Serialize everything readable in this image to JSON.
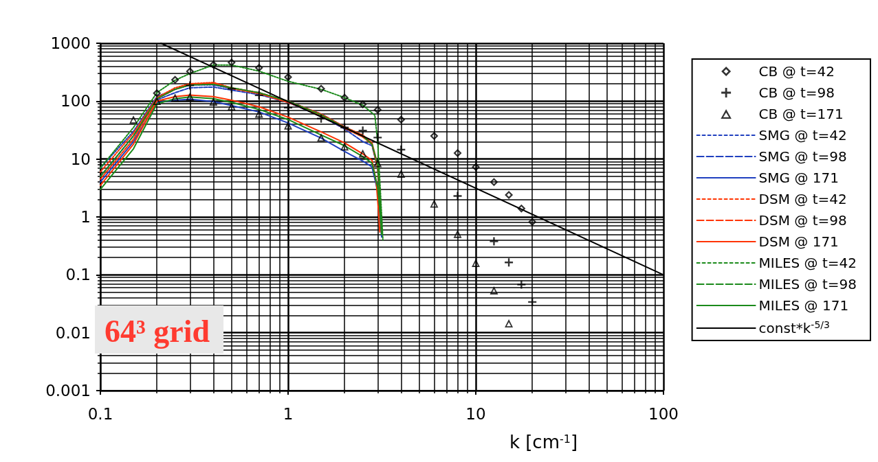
{
  "chart_data": {
    "type": "line",
    "xlabel": "k [cm$^{-1}$]",
    "annotations": [
      "64³ grid"
    ],
    "log": "xy",
    "grid": true,
    "legend": "right",
    "xlim": [
      0.1,
      100
    ],
    "xticks": [
      0.1,
      1,
      10,
      100
    ],
    "ylim": [
      0.001,
      1000
    ],
    "yticks": [
      0.001,
      0.01,
      0.1,
      1,
      10,
      100,
      1000
    ],
    "series": [
      {
        "name": "CB @ t=42",
        "type": "scatter",
        "marker": "diamond",
        "color": "#000000",
        "x": [
          0.2,
          0.25,
          0.3,
          0.4,
          0.5,
          0.7,
          1,
          1.5,
          2,
          2.5,
          3,
          4,
          6,
          8,
          10,
          12.5,
          15,
          17.5,
          20
        ],
        "values": [
          137,
          233,
          327,
          425,
          464,
          378,
          261,
          164,
          115,
          88,
          71,
          48,
          25,
          12.7,
          7.3,
          4,
          2.4,
          1.4,
          0.82
        ]
      },
      {
        "name": "CB @ t=98",
        "type": "scatter",
        "marker": "cross",
        "color": "#000000",
        "x": [
          0.3,
          0.5,
          0.7,
          1,
          1.5,
          2,
          2.5,
          3,
          4,
          8,
          12.5,
          15,
          17.5,
          20
        ],
        "values": [
          187,
          164,
          126,
          77,
          50,
          35,
          31,
          23.5,
          14.5,
          2.3,
          0.38,
          0.164,
          0.068,
          0.034
        ]
      },
      {
        "name": "CB @ t=171",
        "type": "scatter",
        "marker": "triangle",
        "color": "#000000",
        "x": [
          0.15,
          0.2,
          0.25,
          0.3,
          0.4,
          0.5,
          0.7,
          1,
          1.5,
          2,
          2.5,
          3,
          4,
          6,
          8,
          10,
          12.5,
          15
        ],
        "values": [
          48,
          101,
          115,
          120,
          98,
          81,
          61,
          38,
          23.5,
          16.5,
          12.5,
          8.5,
          5.6,
          1.7,
          0.51,
          0.161,
          0.054,
          0.0145
        ]
      },
      {
        "name": "SMG @ t=42",
        "line_style": "dotted",
        "color": "#1f3fbf",
        "x": [
          0.1,
          0.15,
          0.2,
          0.25,
          0.3,
          0.4,
          0.5,
          0.7,
          1,
          1.5,
          2,
          2.5,
          2.8,
          3,
          3.1,
          3.15
        ],
        "values": [
          7,
          30,
          120,
          160,
          190,
          190,
          165,
          140,
          100,
          60,
          36,
          25,
          18,
          8,
          1.5,
          0.55
        ]
      },
      {
        "name": "SMG @ t=98",
        "line_style": "dashed",
        "color": "#1f3fbf",
        "x": [
          0.1,
          0.15,
          0.2,
          0.25,
          0.3,
          0.4,
          0.5,
          0.7,
          1,
          1.5,
          2,
          2.5,
          2.8,
          3,
          3.1,
          3.15
        ],
        "values": [
          5,
          25,
          105,
          140,
          170,
          175,
          155,
          130,
          95,
          55,
          33,
          20,
          17,
          7,
          1.3,
          0.55
        ]
      },
      {
        "name": "SMG @ 171",
        "line_style": "solid",
        "color": "#1f3fbf",
        "x": [
          0.1,
          0.15,
          0.2,
          0.25,
          0.3,
          0.4,
          0.5,
          0.7,
          1,
          1.5,
          2,
          2.5,
          2.8,
          3,
          3.1,
          3.15
        ],
        "values": [
          4,
          20,
          95,
          104,
          108,
          98,
          84,
          65,
          42,
          23,
          13.5,
          9.2,
          7.3,
          2.8,
          0.9,
          0.45
        ]
      },
      {
        "name": "DSM @ t=42",
        "line_style": "dotted",
        "color": "#ff3300",
        "x": [
          0.1,
          0.15,
          0.2,
          0.25,
          0.3,
          0.4,
          0.5,
          0.7,
          1,
          1.5,
          2,
          2.5,
          2.8,
          3,
          3.1,
          3.15
        ],
        "values": [
          6,
          28,
          115,
          170,
          200,
          210,
          170,
          140,
          100,
          60,
          36,
          26,
          19,
          8,
          1.5,
          0.6
        ]
      },
      {
        "name": "DSM @ t=98",
        "line_style": "dashed",
        "color": "#ff3300",
        "x": [
          0.1,
          0.15,
          0.2,
          0.25,
          0.3,
          0.4,
          0.5,
          0.7,
          1,
          1.5,
          2,
          2.5,
          2.8,
          3,
          3.1,
          3.15
        ],
        "values": [
          4.5,
          22,
          110,
          160,
          195,
          205,
          165,
          135,
          95,
          57,
          34,
          24,
          18,
          7,
          1.4,
          0.55
        ]
      },
      {
        "name": "DSM @ 171",
        "line_style": "solid",
        "color": "#ff3300",
        "x": [
          0.1,
          0.15,
          0.2,
          0.25,
          0.3,
          0.4,
          0.5,
          0.7,
          1,
          1.5,
          2,
          2.5,
          2.8,
          2.95,
          3.03,
          3.08
        ],
        "values": [
          3.5,
          18,
          100,
          120,
          127,
          120,
          104,
          80,
          53,
          29.5,
          19,
          12.3,
          9.5,
          4,
          1.3,
          0.55
        ]
      },
      {
        "name": "MILES @ t=42",
        "line_style": "dotted",
        "color": "#1a8a1a",
        "x": [
          0.1,
          0.15,
          0.2,
          0.25,
          0.3,
          0.4,
          0.5,
          0.7,
          1,
          1.5,
          2,
          2.5,
          2.9,
          3,
          3.1,
          3.2
        ],
        "values": [
          7,
          35,
          140,
          230,
          300,
          420,
          420,
          330,
          220,
          160,
          115,
          85,
          57,
          20,
          3,
          0.4
        ]
      },
      {
        "name": "MILES @ t=98",
        "line_style": "dashed",
        "color": "#1a8a1a",
        "x": [
          0.1,
          0.15,
          0.2,
          0.25,
          0.3,
          0.4,
          0.5,
          0.7,
          1,
          1.5,
          2,
          2.5,
          2.8,
          3,
          3.1,
          3.15
        ],
        "values": [
          5,
          25,
          110,
          160,
          190,
          195,
          170,
          140,
          100,
          58,
          35,
          25,
          18,
          8,
          1.5,
          0.6
        ]
      },
      {
        "name": "MILES @ 171",
        "line_style": "solid",
        "color": "#1a8a1a",
        "x": [
          0.1,
          0.15,
          0.2,
          0.25,
          0.3,
          0.4,
          0.5,
          0.7,
          1,
          1.5,
          2,
          2.5,
          2.8,
          3,
          3.1,
          3.15
        ],
        "values": [
          3,
          15,
          90,
          110,
          118,
          110,
          95,
          72,
          48,
          26,
          17,
          11,
          8.5,
          3.3,
          1.1,
          0.5
        ]
      },
      {
        "name": "const*k$^{-5/3}$",
        "line_style": "solid",
        "color": "#000000",
        "x": [
          0.21,
          1,
          100
        ],
        "values": [
          1000,
          98,
          0.1
        ]
      }
    ]
  }
}
